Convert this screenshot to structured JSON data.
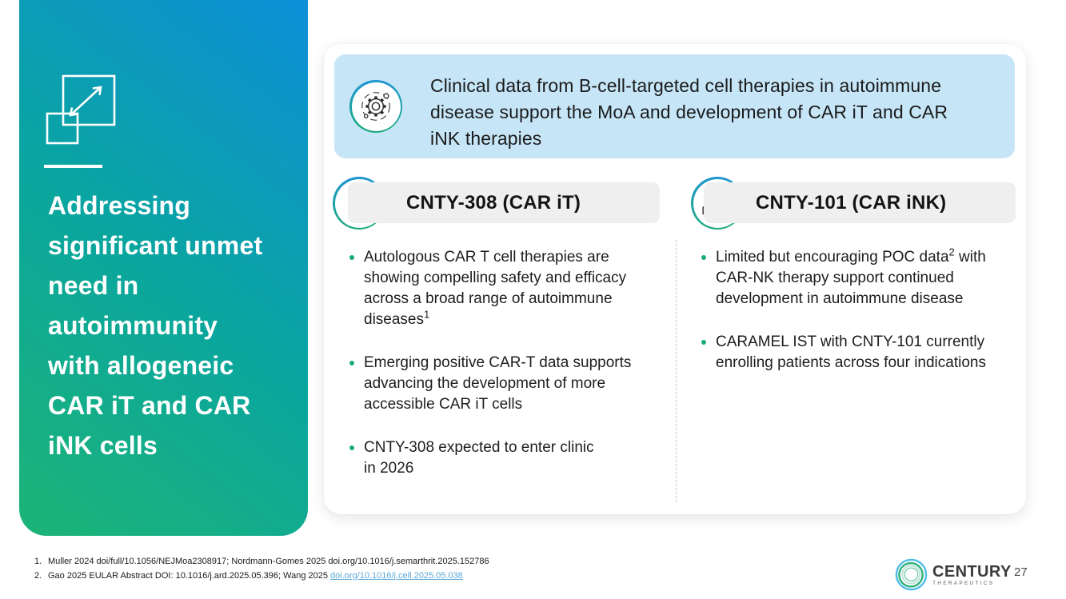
{
  "colors": {
    "gradient_green": "#1db476",
    "gradient_teal": "#0aa69e",
    "gradient_blue": "#0d8fd8",
    "banner_bg": "#c6e6f8",
    "pill_bg": "#efefef",
    "bullet_accent": "#1aa97c",
    "icon_ring_top": "#2196d3",
    "icon_ring_bottom": "#1cab7e",
    "link": "#58a8d8",
    "text": "#1d1d1d"
  },
  "sidebar": {
    "title": "Addressing\nsignificant unmet\nneed in\nautoimmunity\nwith allogeneic\nCAR iT and CAR\niNK cells"
  },
  "banner": {
    "text": "Clinical data from B-cell-targeted cell therapies in autoimmune\ndisease support the MoA and development of CAR iT and CAR\niNK therapies"
  },
  "columns": [
    {
      "title": "CNTY-308 (CAR iT)",
      "icon": "shield-icon",
      "bullets": [
        {
          "pre": "Autologous CAR T cell therapies are showing compelling safety and efficacy across a broad range of autoimmune diseases",
          "sup": "1",
          "post": ""
        },
        {
          "pre": "Emerging positive CAR-T data supports advancing the development of more accessible CAR iT cells",
          "sup": "",
          "post": ""
        },
        {
          "pre": "CNTY-308 expected to enter clinic\nin 2026",
          "sup": "",
          "post": ""
        }
      ]
    },
    {
      "title": "CNTY-101 (CAR iNK)",
      "icon": "hand-gear-check-icon",
      "bullets": [
        {
          "pre": "Limited but encouraging POC data",
          "sup": "2",
          "post": " with CAR-NK therapy support continued development in autoimmune disease"
        },
        {
          "pre": "CARAMEL IST with CNTY-101 currently enrolling patients across four indications",
          "sup": "",
          "post": ""
        }
      ]
    }
  ],
  "footnotes": [
    {
      "num": "1.",
      "text": "Muller 2024 doi/full/10.1056/NEJMoa2308917; Nordmann-Gomes 2025 doi.org/10.1016/j.semarthrit.2025.152786",
      "link": ""
    },
    {
      "num": "2.",
      "text": "Gao 2025 EULAR Abstract DOI: 10.1016/j.ard.2025.05.396; Wang 2025 ",
      "link": "doi.org/10.1016/j.cell.2025.05.038"
    }
  ],
  "logo": {
    "name": "CENTURY",
    "sub": "THERAPEUTICS"
  },
  "page_number": "27"
}
